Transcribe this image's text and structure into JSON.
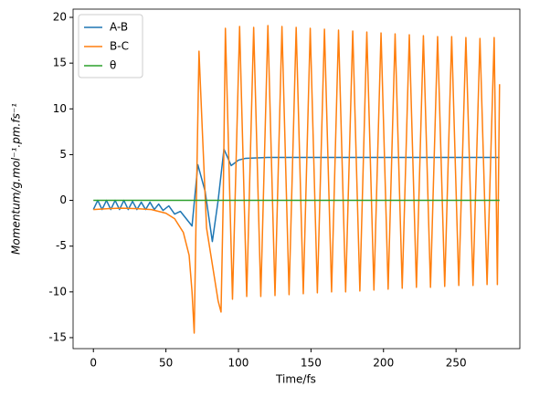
{
  "chart_data": {
    "type": "line",
    "x_label": "Time/fs",
    "y_label": "Momentum/g.mol⁻¹.pm.fs⁻¹",
    "xlim": [
      -14,
      294
    ],
    "xticks": [
      0,
      50,
      100,
      150,
      200,
      250
    ],
    "ylim": [
      -16.2,
      20.9
    ],
    "yticks": [
      -15,
      -10,
      -5,
      0,
      5,
      10,
      15,
      20
    ],
    "legend": "upper left",
    "series": [
      {
        "name": "A-B",
        "color": "#1f77b4",
        "x": [
          0,
          3,
          6,
          9,
          12,
          15,
          18,
          21,
          24,
          27,
          30,
          33,
          36,
          39,
          42,
          45,
          48,
          52,
          56,
          60,
          64,
          68,
          72,
          77,
          82,
          86,
          90,
          95,
          100,
          105,
          120,
          280
        ],
        "values": [
          -1,
          0,
          -1,
          0,
          -1,
          0,
          -1,
          0,
          -1,
          -0.1,
          -1,
          -0.2,
          -1,
          -0.2,
          -1,
          -0.4,
          -1.1,
          -0.6,
          -1.5,
          -1.2,
          -2,
          -2.8,
          3.9,
          1,
          -4.5,
          0,
          5.6,
          3.8,
          4.4,
          4.6,
          4.7,
          4.7
        ]
      },
      {
        "name": "B-C",
        "color": "#ff7f0e",
        "x": [
          0,
          10,
          20,
          30,
          40,
          50,
          56,
          62,
          66,
          68,
          69.5,
          71,
          72.8,
          75,
          78,
          82,
          86,
          88,
          89.5,
          91,
          95.9,
          100.8,
          105.7,
          110.5,
          115.4,
          120.3,
          125.2,
          130,
          134.9,
          139.8,
          144.7,
          149.5,
          154.4,
          159.3,
          164.2,
          169,
          173.9,
          178.8,
          183.7,
          188.5,
          193.4,
          198.3,
          203.2,
          208,
          212.9,
          217.8,
          222.7,
          227.5,
          232.4,
          237.3,
          242.2,
          247,
          251.9,
          256.8,
          261.7,
          266.5,
          271.4,
          276.3,
          278.5,
          280
        ],
        "values": [
          -1,
          -0.9,
          -0.85,
          -0.9,
          -1,
          -1.4,
          -2,
          -3.5,
          -6,
          -10,
          -14.5,
          0,
          16.3,
          8,
          -3,
          -7,
          -11,
          -12.2,
          0,
          18.8,
          -10.8,
          19,
          -10.5,
          18.9,
          -10.5,
          19.1,
          -10.4,
          19,
          -10.3,
          18.9,
          -10.2,
          18.8,
          -10.1,
          18.7,
          -10,
          18.6,
          -10,
          18.5,
          -9.9,
          18.4,
          -9.8,
          18.3,
          -9.7,
          18.2,
          -9.6,
          18.1,
          -9.5,
          18,
          -9.5,
          17.9,
          -9.4,
          17.9,
          -9.3,
          17.8,
          -9.3,
          17.7,
          -9.2,
          17.8,
          -9.2,
          12.7
        ]
      },
      {
        "name": "θ",
        "color": "#2ca02c",
        "x": [
          0,
          280
        ],
        "values": [
          0,
          0
        ]
      }
    ]
  }
}
